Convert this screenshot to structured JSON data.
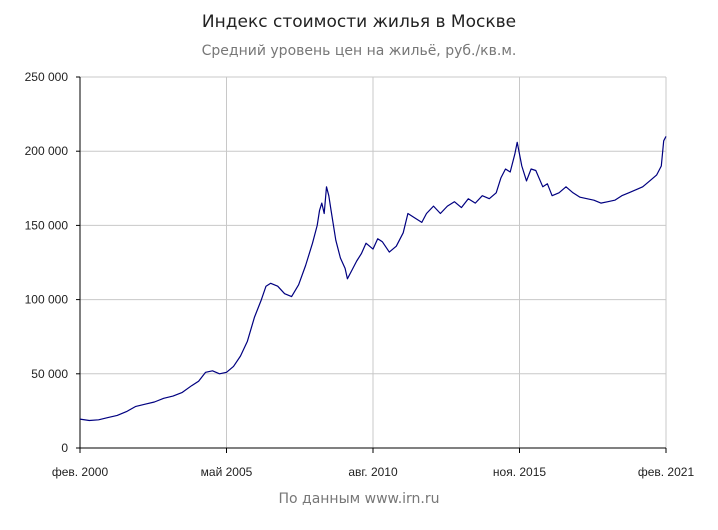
{
  "chart_data": {
    "type": "line",
    "title": "Индекс стоимости жилья в Москве",
    "subtitle": "Средний уровень цен на жильё, руб./кв.м.",
    "source": "По данным www.irn.ru",
    "xlabel": "",
    "ylabel": "",
    "ylim": [
      0,
      250000
    ],
    "yticks": [
      0,
      50000,
      100000,
      150000,
      200000,
      250000
    ],
    "ytick_labels": [
      "0",
      "50 000",
      "100 000",
      "150 000",
      "200 000",
      "250 000"
    ],
    "xlim": [
      "2000-02",
      "2021-02"
    ],
    "xtick_labels": [
      {
        "date": "2000-02",
        "label": "фев. 2000"
      },
      {
        "date": "2005-05",
        "label": "май 2005"
      },
      {
        "date": "2010-08",
        "label": "авг. 2010"
      },
      {
        "date": "2015-11",
        "label": "ноя. 2015"
      },
      {
        "date": "2021-02",
        "label": "фев. 2021"
      }
    ],
    "grid": true,
    "line_color": "#000080",
    "series": [
      {
        "points": [
          [
            "2000-02",
            19500
          ],
          [
            "2000-06",
            18500
          ],
          [
            "2000-10",
            19000
          ],
          [
            "2001-02",
            20500
          ],
          [
            "2001-06",
            22000
          ],
          [
            "2001-10",
            24500
          ],
          [
            "2002-02",
            28000
          ],
          [
            "2002-06",
            29500
          ],
          [
            "2002-10",
            31000
          ],
          [
            "2003-02",
            33500
          ],
          [
            "2003-06",
            35000
          ],
          [
            "2003-10",
            37500
          ],
          [
            "2004-02",
            42000
          ],
          [
            "2004-05",
            45000
          ],
          [
            "2004-08",
            51000
          ],
          [
            "2004-11",
            52000
          ],
          [
            "2005-02",
            50000
          ],
          [
            "2005-05",
            51000
          ],
          [
            "2005-08",
            55000
          ],
          [
            "2005-11",
            62000
          ],
          [
            "2006-02",
            72000
          ],
          [
            "2006-05",
            88000
          ],
          [
            "2006-08",
            100000
          ],
          [
            "2006-10",
            109000
          ],
          [
            "2006-12",
            111000
          ],
          [
            "2007-03",
            109000
          ],
          [
            "2007-06",
            104000
          ],
          [
            "2007-09",
            102000
          ],
          [
            "2007-12",
            110000
          ],
          [
            "2008-03",
            123000
          ],
          [
            "2008-06",
            138000
          ],
          [
            "2008-08",
            150000
          ],
          [
            "2008-09",
            160000
          ],
          [
            "2008-10",
            165000
          ],
          [
            "2008-11",
            158000
          ],
          [
            "2008-12",
            176000
          ],
          [
            "2009-01",
            170000
          ],
          [
            "2009-02",
            160000
          ],
          [
            "2009-04",
            140000
          ],
          [
            "2009-06",
            128000
          ],
          [
            "2009-08",
            121000
          ],
          [
            "2009-09",
            114000
          ],
          [
            "2009-11",
            120000
          ],
          [
            "2010-01",
            126000
          ],
          [
            "2010-03",
            131000
          ],
          [
            "2010-05",
            138000
          ],
          [
            "2010-08",
            134000
          ],
          [
            "2010-10",
            141000
          ],
          [
            "2010-12",
            139000
          ],
          [
            "2011-03",
            132000
          ],
          [
            "2011-06",
            136000
          ],
          [
            "2011-09",
            145000
          ],
          [
            "2011-11",
            158000
          ],
          [
            "2012-02",
            155000
          ],
          [
            "2012-05",
            152000
          ],
          [
            "2012-07",
            158000
          ],
          [
            "2012-10",
            163000
          ],
          [
            "2013-01",
            158000
          ],
          [
            "2013-04",
            163000
          ],
          [
            "2013-07",
            166000
          ],
          [
            "2013-10",
            162000
          ],
          [
            "2014-01",
            168000
          ],
          [
            "2014-04",
            165000
          ],
          [
            "2014-07",
            170000
          ],
          [
            "2014-10",
            168000
          ],
          [
            "2015-01",
            172000
          ],
          [
            "2015-03",
            182000
          ],
          [
            "2015-05",
            188000
          ],
          [
            "2015-07",
            186000
          ],
          [
            "2015-09",
            198000
          ],
          [
            "2015-10",
            206000
          ],
          [
            "2015-12",
            190000
          ],
          [
            "2016-02",
            180000
          ],
          [
            "2016-04",
            188000
          ],
          [
            "2016-06",
            187000
          ],
          [
            "2016-09",
            176000
          ],
          [
            "2016-11",
            178000
          ],
          [
            "2017-01",
            170000
          ],
          [
            "2017-04",
            172000
          ],
          [
            "2017-07",
            176000
          ],
          [
            "2017-10",
            172000
          ],
          [
            "2018-01",
            169000
          ],
          [
            "2018-04",
            168000
          ],
          [
            "2018-07",
            167000
          ],
          [
            "2018-10",
            165000
          ],
          [
            "2019-01",
            166000
          ],
          [
            "2019-04",
            167000
          ],
          [
            "2019-07",
            170000
          ],
          [
            "2019-10",
            172000
          ],
          [
            "2020-01",
            174000
          ],
          [
            "2020-04",
            176000
          ],
          [
            "2020-07",
            180000
          ],
          [
            "2020-10",
            184000
          ],
          [
            "2020-12",
            190000
          ],
          [
            "2021-01",
            207000
          ],
          [
            "2021-02",
            210000
          ]
        ]
      }
    ]
  }
}
